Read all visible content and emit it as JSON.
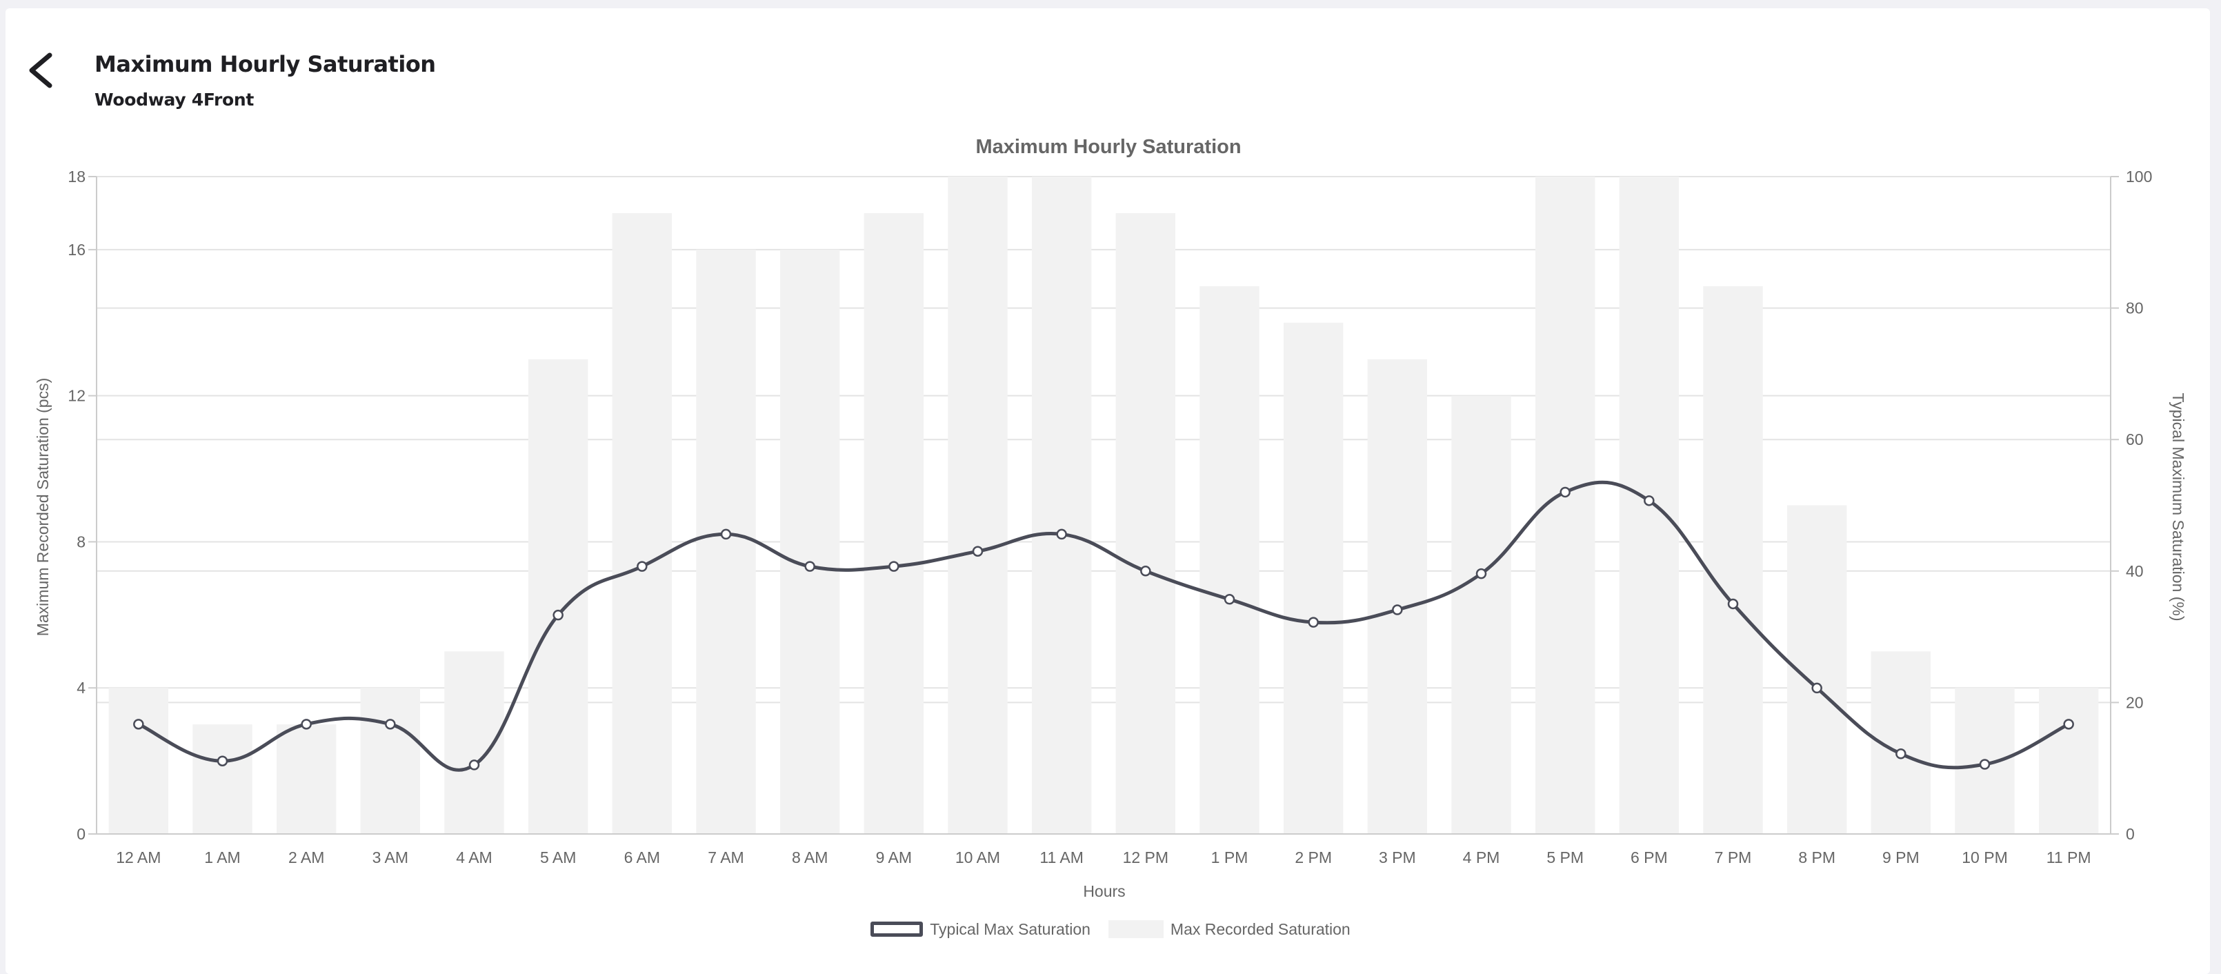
{
  "header": {
    "back_icon": "chevron-left-icon",
    "title": "Maximum Hourly Saturation",
    "subtitle": "Woodway 4Front"
  },
  "chart_data": {
    "type": "bar",
    "title": "Maximum Hourly Saturation",
    "xlabel": "Hours",
    "ylabel": "Maximum Recorded Saturation (pcs)",
    "y2label": "Typical Maximum Saturation (%)",
    "categories": [
      "12 AM",
      "1 AM",
      "2 AM",
      "3 AM",
      "4 AM",
      "5 AM",
      "6 AM",
      "7 AM",
      "8 AM",
      "9 AM",
      "10 AM",
      "11 AM",
      "12 PM",
      "1 PM",
      "2 PM",
      "3 PM",
      "4 PM",
      "5 PM",
      "6 PM",
      "7 PM",
      "8 PM",
      "9 PM",
      "10 PM",
      "11 PM"
    ],
    "ylim": [
      0,
      18
    ],
    "yticks": [
      0,
      4,
      8,
      12,
      16,
      18
    ],
    "y2lim": [
      0,
      100
    ],
    "y2ticks": [
      0,
      20,
      40,
      60,
      80,
      100
    ],
    "grid": true,
    "legend_position": "bottom",
    "series": [
      {
        "name": "Typical Max Saturation",
        "type": "line",
        "axis": "right",
        "color": "#4a4c58",
        "values": [
          16.7,
          11.1,
          16.7,
          16.7,
          10.5,
          33.3,
          40.7,
          45.6,
          40.7,
          40.7,
          43.0,
          45.6,
          40.0,
          35.7,
          32.2,
          34.1,
          39.6,
          52.0,
          50.7,
          35.0,
          22.2,
          12.2,
          10.6,
          16.7
        ]
      },
      {
        "name": "Max Recorded Saturation",
        "type": "bar",
        "axis": "left",
        "color": "#f2f2f2",
        "values": [
          4,
          3,
          3,
          4,
          5,
          13,
          17,
          16,
          16,
          17,
          18,
          18,
          17,
          15,
          14,
          13,
          12,
          18,
          18,
          15,
          9,
          5,
          4,
          4
        ]
      }
    ]
  }
}
